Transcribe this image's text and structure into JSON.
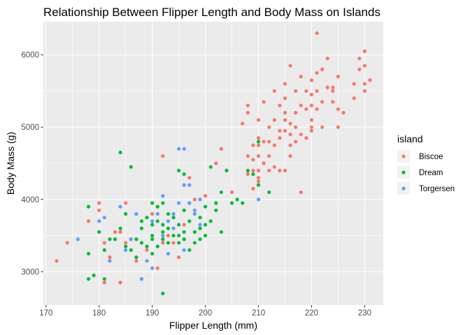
{
  "chart_data": {
    "type": "scatter",
    "title": "Relationship Between Flipper Length and Body Mass on Islands",
    "xlabel": "Flipper Length (mm)",
    "ylabel": "Body Mass (g)",
    "xlim": [
      169.5,
      233.5
    ],
    "ylim": [
      2540,
      6460
    ],
    "x_ticks": [
      170,
      180,
      190,
      200,
      210,
      220,
      230
    ],
    "y_ticks": [
      3000,
      4000,
      5000,
      6000
    ],
    "grid": true,
    "legend": {
      "title": "island",
      "position": "right"
    },
    "series": [
      {
        "name": "Biscoe",
        "color": "#F8766D",
        "points": [
          [
            172,
            3150
          ],
          [
            174,
            3400
          ],
          [
            178,
            3700
          ],
          [
            180,
            3950
          ],
          [
            180,
            3850
          ],
          [
            181,
            2850
          ],
          [
            181,
            3400
          ],
          [
            182,
            3200
          ],
          [
            183,
            3550
          ],
          [
            184,
            3550
          ],
          [
            184,
            2850
          ],
          [
            185,
            3950
          ],
          [
            185,
            3400
          ],
          [
            186,
            3450
          ],
          [
            187,
            3150
          ],
          [
            187,
            3800
          ],
          [
            188,
            2900
          ],
          [
            189,
            3300
          ],
          [
            190,
            3950
          ],
          [
            190,
            3800
          ],
          [
            191,
            3050
          ],
          [
            192,
            3400
          ],
          [
            192,
            4600
          ],
          [
            193,
            3500
          ],
          [
            194,
            3400
          ],
          [
            195,
            3200
          ],
          [
            196,
            3650
          ],
          [
            197,
            4300
          ],
          [
            198,
            4000
          ],
          [
            200,
            4050
          ],
          [
            202,
            4500
          ],
          [
            203,
            4700
          ],
          [
            205,
            4100
          ],
          [
            207,
            5050
          ],
          [
            208,
            4350
          ],
          [
            208,
            4600
          ],
          [
            208,
            5200
          ],
          [
            208,
            5300
          ],
          [
            209,
            4400
          ],
          [
            209,
            4550
          ],
          [
            209,
            4750
          ],
          [
            209,
            4150
          ],
          [
            210,
            4250
          ],
          [
            210,
            4400
          ],
          [
            210,
            4600
          ],
          [
            210,
            4750
          ],
          [
            210,
            4850
          ],
          [
            210,
            5100
          ],
          [
            210,
            4300
          ],
          [
            210,
            4000
          ],
          [
            211,
            4500
          ],
          [
            211,
            4800
          ],
          [
            211,
            5350
          ],
          [
            212,
            4600
          ],
          [
            212,
            4800
          ],
          [
            212,
            5000
          ],
          [
            212,
            4400
          ],
          [
            213,
            4450
          ],
          [
            213,
            4750
          ],
          [
            213,
            5100
          ],
          [
            213,
            5500
          ],
          [
            214,
            4400
          ],
          [
            214,
            4850
          ],
          [
            214,
            4950
          ],
          [
            214,
            5300
          ],
          [
            215,
            4400
          ],
          [
            215,
            4950
          ],
          [
            215,
            5100
          ],
          [
            215,
            5200
          ],
          [
            215,
            5400
          ],
          [
            215,
            5600
          ],
          [
            216,
            4750
          ],
          [
            216,
            4900
          ],
          [
            216,
            5050
          ],
          [
            216,
            5850
          ],
          [
            216,
            4600
          ],
          [
            217,
            4800
          ],
          [
            217,
            5000
          ],
          [
            217,
            5200
          ],
          [
            217,
            5500
          ],
          [
            218,
            4100
          ],
          [
            218,
            4900
          ],
          [
            218,
            5300
          ],
          [
            218,
            5700
          ],
          [
            219,
            4850
          ],
          [
            219,
            5250
          ],
          [
            219,
            5500
          ],
          [
            220,
            5000
          ],
          [
            220,
            5300
          ],
          [
            220,
            5450
          ],
          [
            220,
            5650
          ],
          [
            220,
            5100
          ],
          [
            220,
            4950
          ],
          [
            221,
            5250
          ],
          [
            221,
            5500
          ],
          [
            221,
            5750
          ],
          [
            221,
            6300
          ],
          [
            222,
            5000
          ],
          [
            222,
            5350
          ],
          [
            222,
            5800
          ],
          [
            223,
            5550
          ],
          [
            223,
            5950
          ],
          [
            224,
            5350
          ],
          [
            224,
            5550
          ],
          [
            224,
            5500
          ],
          [
            225,
            5000
          ],
          [
            225,
            5250
          ],
          [
            225,
            5700
          ],
          [
            226,
            5200
          ],
          [
            228,
            5600
          ],
          [
            228,
            5400
          ],
          [
            229,
            5950
          ],
          [
            229,
            5800
          ],
          [
            230,
            5500
          ],
          [
            230,
            5600
          ],
          [
            230,
            5850
          ],
          [
            230,
            6050
          ],
          [
            231,
            5650
          ]
        ]
      },
      {
        "name": "Dream",
        "color": "#00BA38",
        "points": [
          [
            178,
            2900
          ],
          [
            178,
            3900
          ],
          [
            178,
            3250
          ],
          [
            179,
            2950
          ],
          [
            180,
            3550
          ],
          [
            181,
            3300
          ],
          [
            181,
            2900
          ],
          [
            182,
            3450
          ],
          [
            183,
            3450
          ],
          [
            184,
            3600
          ],
          [
            184,
            4650
          ],
          [
            185,
            3350
          ],
          [
            185,
            3800
          ],
          [
            186,
            3300
          ],
          [
            186,
            4450
          ],
          [
            187,
            3450
          ],
          [
            187,
            3200
          ],
          [
            188,
            3400
          ],
          [
            188,
            3600
          ],
          [
            188,
            3700
          ],
          [
            189,
            3750
          ],
          [
            189,
            3350
          ],
          [
            190,
            3450
          ],
          [
            190,
            3650
          ],
          [
            190,
            3950
          ],
          [
            190,
            3500
          ],
          [
            190,
            3250
          ],
          [
            191,
            3350
          ],
          [
            191,
            3700
          ],
          [
            191,
            3900
          ],
          [
            192,
            3450
          ],
          [
            192,
            3550
          ],
          [
            192,
            3650
          ],
          [
            192,
            2700
          ],
          [
            192,
            3950
          ],
          [
            193,
            3400
          ],
          [
            193,
            3600
          ],
          [
            193,
            3800
          ],
          [
            194,
            3500
          ],
          [
            194,
            3750
          ],
          [
            195,
            3400
          ],
          [
            195,
            3500
          ],
          [
            195,
            3650
          ],
          [
            195,
            4400
          ],
          [
            196,
            3450
          ],
          [
            196,
            3550
          ],
          [
            196,
            3850
          ],
          [
            196,
            4350
          ],
          [
            197,
            3300
          ],
          [
            197,
            3700
          ],
          [
            197,
            3950
          ],
          [
            198,
            3400
          ],
          [
            198,
            3550
          ],
          [
            199,
            3450
          ],
          [
            199,
            3600
          ],
          [
            199,
            3750
          ],
          [
            200,
            3900
          ],
          [
            200,
            3500
          ],
          [
            200,
            3650
          ],
          [
            201,
            3700
          ],
          [
            201,
            4450
          ],
          [
            202,
            3850
          ],
          [
            202,
            3950
          ],
          [
            203,
            3550
          ],
          [
            203,
            4100
          ],
          [
            204,
            4400
          ],
          [
            205,
            3950
          ],
          [
            206,
            4000
          ],
          [
            207,
            3950
          ],
          [
            208,
            4400
          ],
          [
            209,
            4350
          ],
          [
            210,
            4800
          ],
          [
            210,
            4200
          ],
          [
            212,
            4100
          ]
        ]
      },
      {
        "name": "Torgersen",
        "color": "#619CFF",
        "points": [
          [
            176,
            3450
          ],
          [
            180,
            3700
          ],
          [
            181,
            3750
          ],
          [
            182,
            3150
          ],
          [
            184,
            3900
          ],
          [
            185,
            3300
          ],
          [
            186,
            3450
          ],
          [
            187,
            3800
          ],
          [
            188,
            2900
          ],
          [
            189,
            3150
          ],
          [
            190,
            3050
          ],
          [
            190,
            3700
          ],
          [
            191,
            3800
          ],
          [
            192,
            3500
          ],
          [
            192,
            4050
          ],
          [
            193,
            3250
          ],
          [
            193,
            3700
          ],
          [
            194,
            3600
          ],
          [
            194,
            3800
          ],
          [
            195,
            4700
          ],
          [
            195,
            3950
          ],
          [
            196,
            4700
          ],
          [
            196,
            4200
          ],
          [
            196,
            3300
          ],
          [
            197,
            4200
          ],
          [
            197,
            3950
          ],
          [
            198,
            3800
          ],
          [
            198,
            3850
          ],
          [
            199,
            3650
          ],
          [
            199,
            4000
          ],
          [
            210,
            4000
          ]
        ]
      }
    ]
  }
}
